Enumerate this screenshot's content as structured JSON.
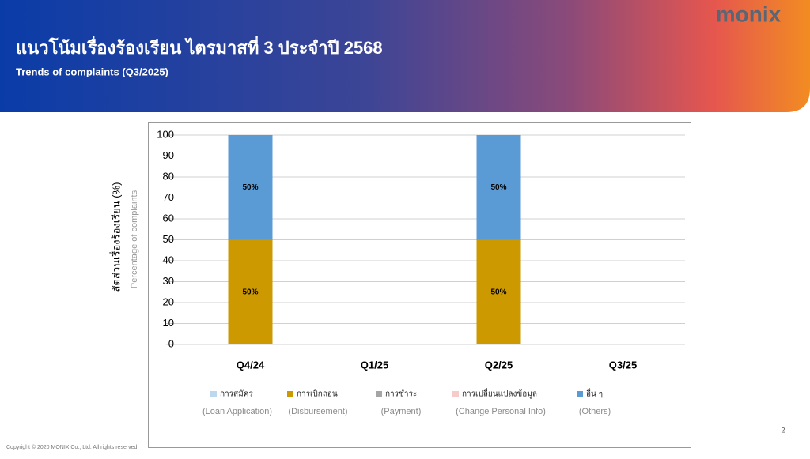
{
  "header": {
    "title": "แนวโน้มเรื่องร้องเรียน ไตรมาสที่ 3 ประจำปี 2568",
    "subtitle": "Trends of complaints (Q3/2025)",
    "logo": "monix"
  },
  "footer": {
    "copyright": "Copyright © 2020 MONIX Co., Ltd. All rights reserved.",
    "page": "2"
  },
  "chart_data": {
    "type": "stacked-bar",
    "ylabel": "สัดส่วนเรื่องร้องเรียน (%)",
    "ylabel_en": "Percentage of complaints",
    "categories": [
      "Q4/24",
      "Q1/25",
      "Q2/25",
      "Q3/25"
    ],
    "series": [
      {
        "name": "การสมัคร",
        "name_en": "(Loan Application)",
        "color": "#bdd7ee",
        "values": [
          0,
          null,
          0,
          null
        ]
      },
      {
        "name": "การเบิกถอน",
        "name_en": "(Disbursement)",
        "color": "#cc9900",
        "values": [
          50,
          null,
          50,
          null
        ],
        "value_labels": [
          "50%",
          null,
          "50%",
          null
        ]
      },
      {
        "name": "การชำระ",
        "name_en": "(Payment)",
        "color": "#a5a5a5",
        "values": [
          0,
          null,
          0,
          null
        ]
      },
      {
        "name": "การเปลี่ยนแปลงข้อมูล",
        "name_en": "(Change Personal Info)",
        "color": "#f8cbcb",
        "values": [
          0,
          null,
          0,
          null
        ]
      },
      {
        "name": "อื่น ๆ",
        "name_en": "(Others)",
        "color": "#5b9bd5",
        "values": [
          50,
          null,
          50,
          null
        ],
        "value_labels": [
          "50%",
          null,
          "50%",
          null
        ]
      }
    ],
    "ylim": [
      0,
      100
    ],
    "yticks": [
      0,
      10,
      20,
      30,
      40,
      50,
      60,
      70,
      80,
      90,
      100
    ],
    "grid": true
  }
}
